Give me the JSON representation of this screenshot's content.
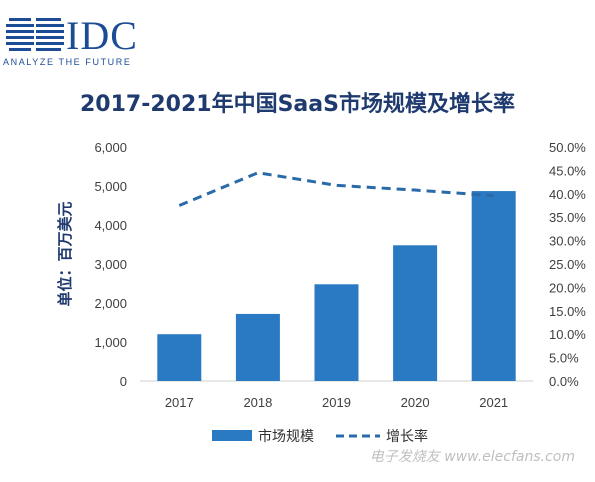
{
  "logo": {
    "name": "IDC",
    "tagline": "ANALYZE THE FUTURE"
  },
  "title": "2017-2021年中国SaaS市场规模及增长率",
  "watermark": "电子发烧友 www.elecfans.com",
  "colors": {
    "bar": "#2a7ac3",
    "line": "#2a6aa8",
    "text": "#1f3a6e",
    "axis": "#d0d0d0"
  },
  "chart_data": {
    "type": "bar",
    "categories": [
      "2017",
      "2018",
      "2019",
      "2020",
      "2021"
    ],
    "series": [
      {
        "name": "市场规模",
        "type": "bar",
        "axis": "left",
        "values": [
          1200,
          1720,
          2480,
          3480,
          4870
        ]
      },
      {
        "name": "增长率",
        "type": "line",
        "style": "dashed",
        "axis": "right",
        "values": [
          37.5,
          44.5,
          41.8,
          40.8,
          39.6
        ]
      }
    ],
    "ylabel": "单位：百万美元",
    "ylim": [
      0,
      6000
    ],
    "yticks": [
      "0",
      "1,000",
      "2,000",
      "3,000",
      "4,000",
      "5,000",
      "6,000"
    ],
    "y2lim": [
      0,
      50
    ],
    "y2ticks": [
      "0.0%",
      "5.0%",
      "10.0%",
      "15.0%",
      "20.0%",
      "25.0%",
      "30.0%",
      "35.0%",
      "40.0%",
      "45.0%",
      "50.0%"
    ],
    "grid": false,
    "legend": "bottom"
  }
}
